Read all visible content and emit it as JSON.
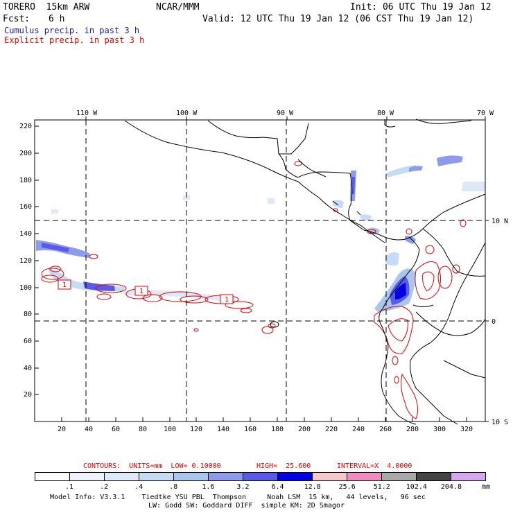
{
  "header": {
    "model": "TORERO  15km ARW",
    "org": "NCAR/MMM",
    "init": "Init: 06 UTC Thu 19 Jan 12",
    "fcst_label": "Fcst:",
    "fcst_value": "6 h",
    "valid": "Valid: 12 UTC Thu 19 Jan 12 (06 CST Thu 19 Jan 12)"
  },
  "fields": {
    "cumulus": "Cumulus precip. in past 3 h",
    "explicit": "Explicit precip. in past 3 h"
  },
  "map": {
    "lon_labels": [
      "110 W",
      "100 W",
      "90 W",
      "80 W",
      "70 W"
    ],
    "lat_labels": [
      "10 N",
      "0",
      "10 S"
    ],
    "y_ticks": [
      "220",
      "200",
      "180",
      "160",
      "140",
      "120",
      "100",
      "80",
      "60",
      "40",
      "20"
    ],
    "x_ticks": [
      "20",
      "40",
      "60",
      "80",
      "100",
      "120",
      "140",
      "160",
      "180",
      "200",
      "220",
      "240",
      "260",
      "280",
      "300",
      "320"
    ],
    "contour_labels": [
      "1",
      "1",
      "1"
    ]
  },
  "contours_info": {
    "units": "CONTOURS:  UNITS=mm  LOW= 0.10000",
    "high": "HIGH=  25.600",
    "interval": "INTERVAL=X  4.0000"
  },
  "colorbar": {
    "colors": [
      "#ffffff",
      "#eef3fb",
      "#dde8f8",
      "#c6dbf4",
      "#a9c6ee",
      "#8c9cea",
      "#5a5ae6",
      "#0000e0",
      "#f5c9c9",
      "#f08cc0",
      "#a8a8a8",
      "#444444",
      "#d6a6f0"
    ],
    "labels": [
      ".1",
      ".2",
      ".4",
      ".8",
      "1.6",
      "3.2",
      "6.4",
      "12.8",
      "25.6",
      "51.2",
      "102.4",
      "204.8"
    ],
    "unit": "mm"
  },
  "footer": {
    "line1": "Model Info: V3.3.1    Tiedtke YSU PBL  Thompson     Noah LSM  15 km,   44 levels,   96 sec",
    "line2": "LW: Godd SW: Goddard DIFF  simple KM: 2D Smagor"
  }
}
